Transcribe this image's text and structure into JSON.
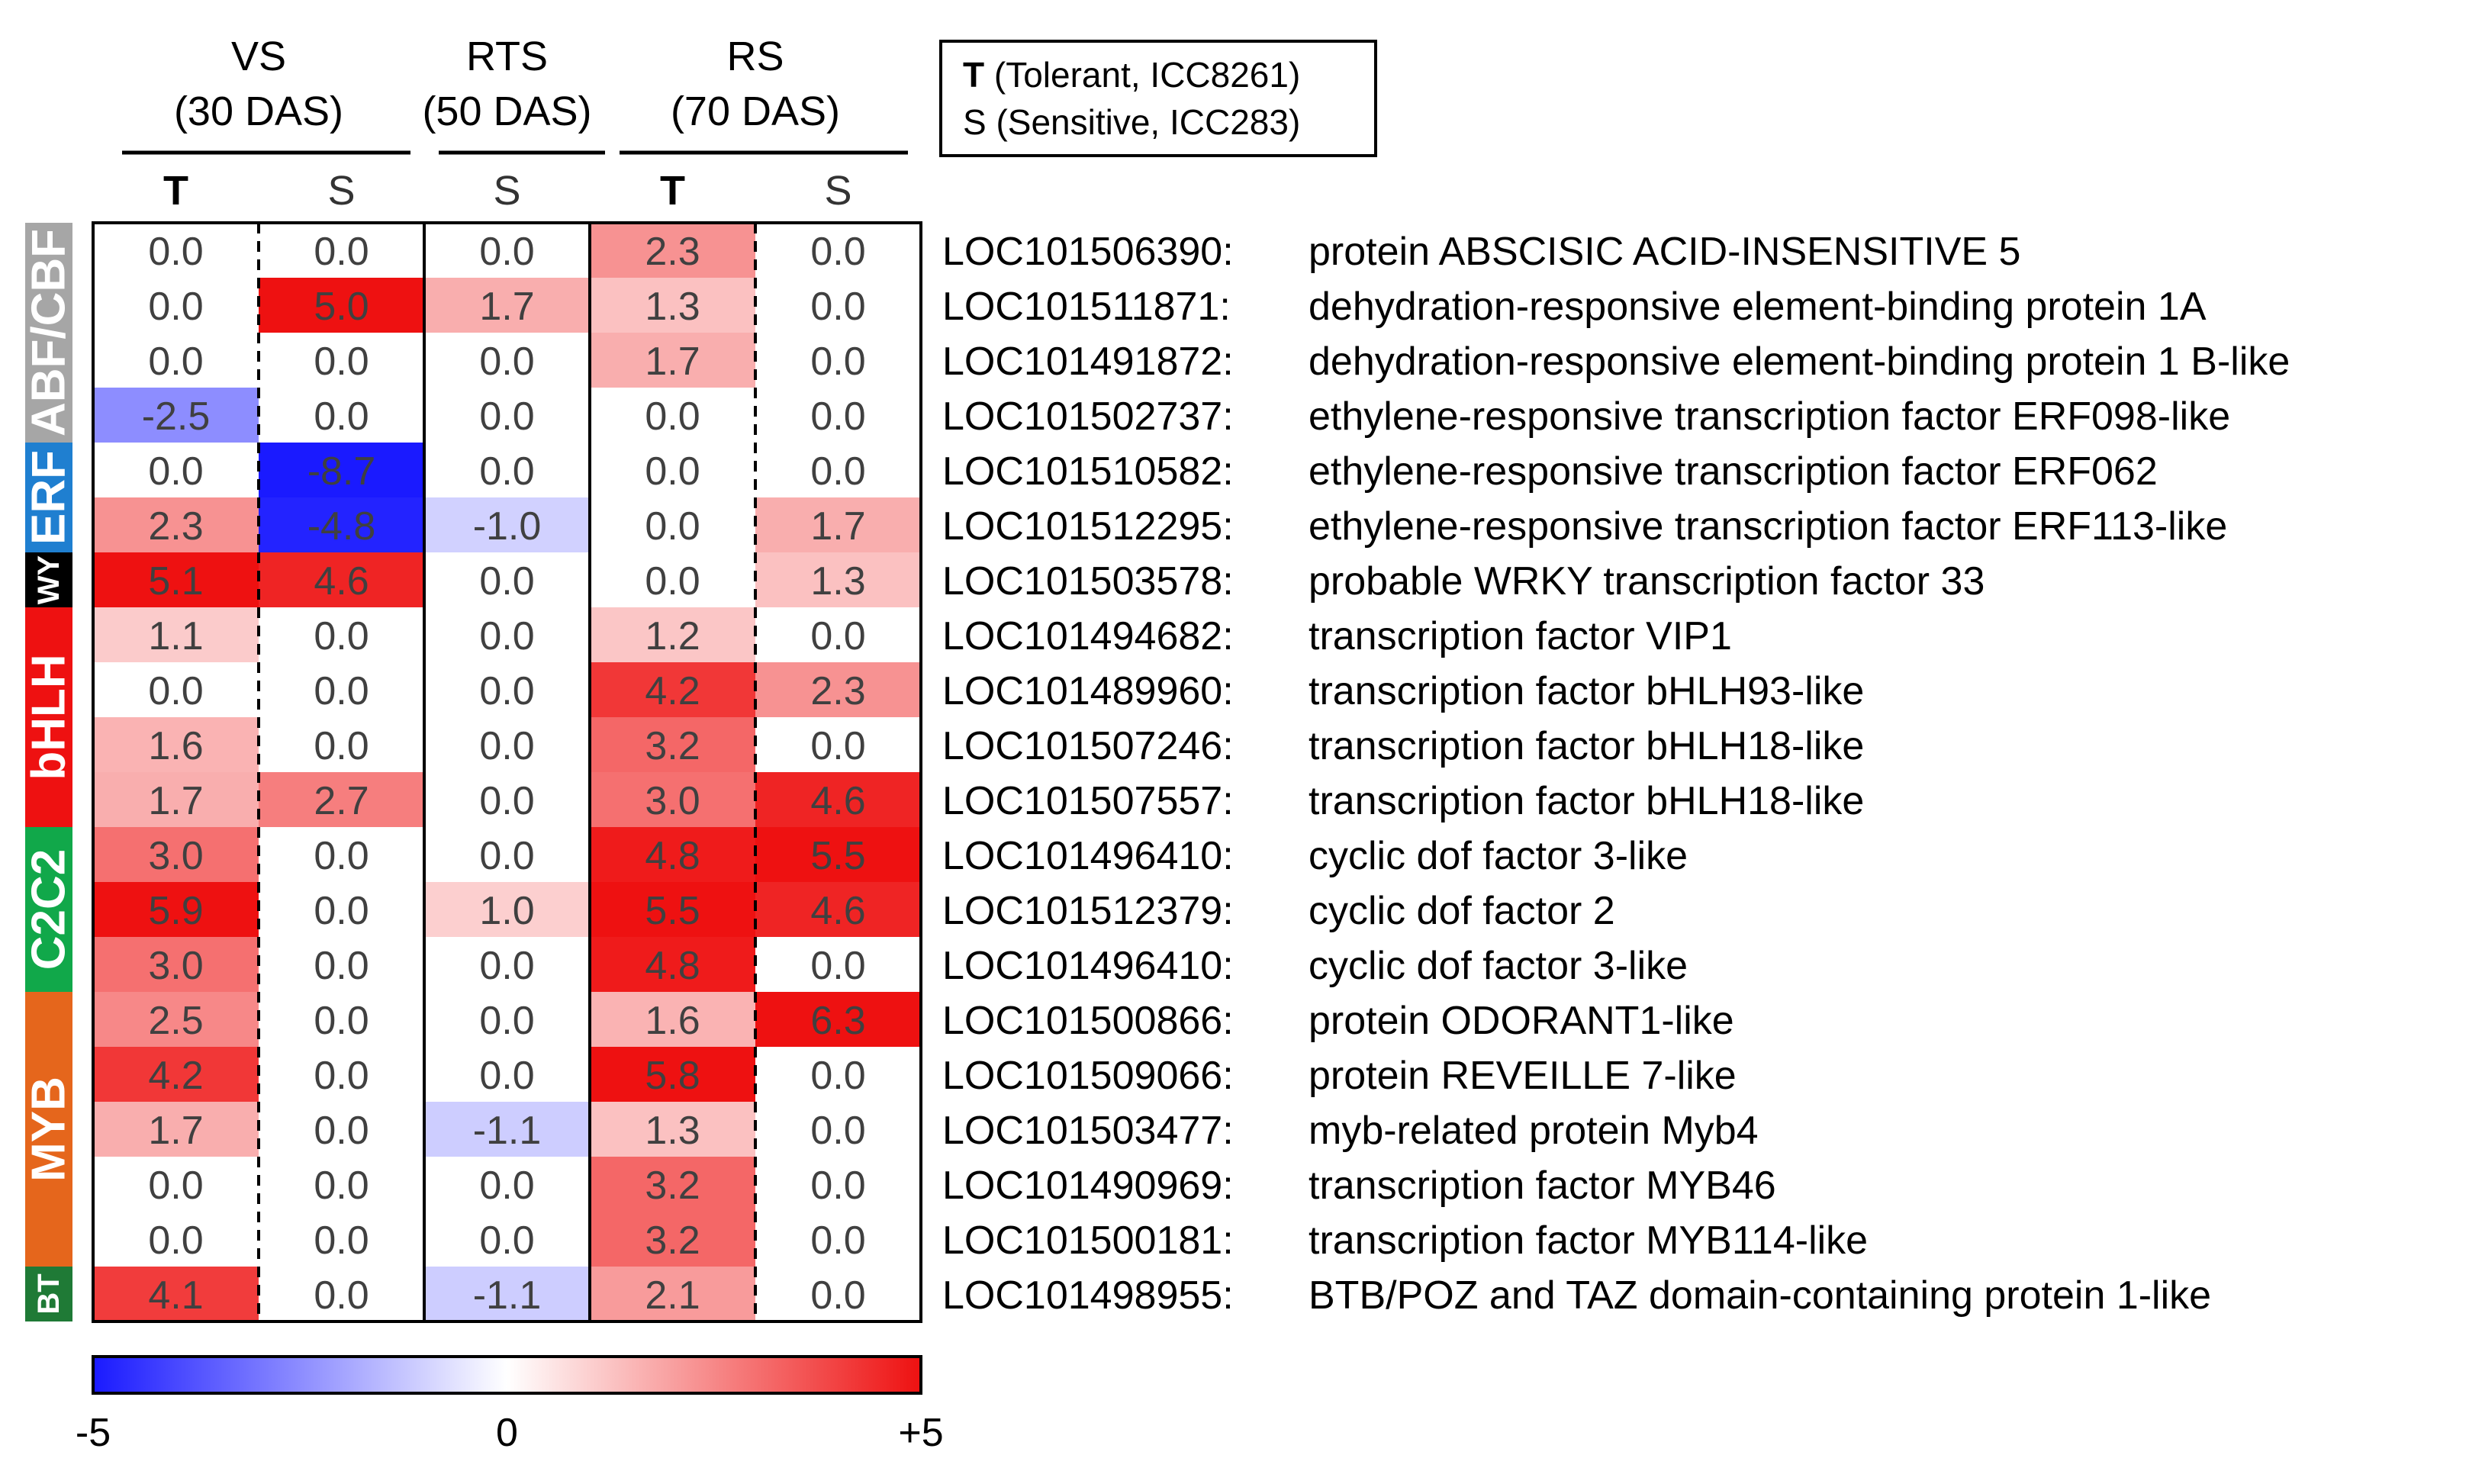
{
  "chart_data": {
    "type": "heatmap",
    "title": "",
    "color_scale": {
      "min": -5,
      "max": 5,
      "low_color": "#1a1aff",
      "mid_color": "#ffffff",
      "high_color": "#ee1111"
    },
    "colorbar_labels": [
      "-5",
      "0",
      "+5"
    ],
    "stage_groups": [
      {
        "name": "VS",
        "sub": "(30 DAS)"
      },
      {
        "name": "RTS",
        "sub": "(50 DAS)"
      },
      {
        "name": "RS",
        "sub": "(70 DAS)"
      }
    ],
    "columns": [
      {
        "label": "T",
        "bold": true
      },
      {
        "label": "S",
        "bold": false
      },
      {
        "label": "S",
        "bold": false
      },
      {
        "label": "T",
        "bold": true
      },
      {
        "label": "S",
        "bold": false
      }
    ],
    "legend": {
      "line1_key": "T",
      "line1_text": " (Tolerant, ICC8261)",
      "line2_key": "S",
      "line2_text": " (Sensitive, ICC283)"
    },
    "families": [
      {
        "name": "ABF/CBF",
        "color": "#a6a6a6"
      },
      {
        "name": "ERF",
        "color": "#1f7fd0"
      },
      {
        "name": "WY",
        "color": "#000000"
      },
      {
        "name": "bHLH",
        "color": "#ee1111"
      },
      {
        "name": "C2C2",
        "color": "#11a84a"
      },
      {
        "name": "MYB",
        "color": "#e5661c"
      },
      {
        "name": "BT",
        "color": "#1f7a36"
      }
    ],
    "rows": [
      {
        "id": "LOC101506390:",
        "desc": "protein ABSCISIC ACID-INSENSITIVE 5",
        "values": [
          0.0,
          0.0,
          0.0,
          2.3,
          0.0
        ]
      },
      {
        "id": "LOC101511871:",
        "desc": "dehydration-responsive element-binding protein 1A",
        "values": [
          0.0,
          5.0,
          1.7,
          1.3,
          0.0
        ]
      },
      {
        "id": "LOC101491872:",
        "desc": "dehydration-responsive element-binding protein 1 B-like",
        "values": [
          0.0,
          0.0,
          0.0,
          1.7,
          0.0
        ]
      },
      {
        "id": "LOC101502737:",
        "desc": "ethylene-responsive transcription factor ERF098-like",
        "values": [
          -2.5,
          0.0,
          0.0,
          0.0,
          0.0
        ]
      },
      {
        "id": "LOC101510582:",
        "desc": "ethylene-responsive transcription factor ERF062",
        "values": [
          0.0,
          -8.7,
          0.0,
          0.0,
          0.0
        ]
      },
      {
        "id": "LOC101512295:",
        "desc": "ethylene-responsive transcription factor ERF113-like",
        "values": [
          2.3,
          -4.8,
          -1.0,
          0.0,
          1.7
        ]
      },
      {
        "id": "LOC101503578:",
        "desc": "probable WRKY transcription factor 33",
        "values": [
          5.1,
          4.6,
          0.0,
          0.0,
          1.3
        ]
      },
      {
        "id": "LOC101494682:",
        "desc": "transcription factor VIP1",
        "values": [
          1.1,
          0.0,
          0.0,
          1.2,
          0.0
        ]
      },
      {
        "id": "LOC101489960:",
        "desc": "transcription factor bHLH93-like",
        "values": [
          0.0,
          0.0,
          0.0,
          4.2,
          2.3
        ]
      },
      {
        "id": "LOC101507246:",
        "desc": "transcription factor bHLH18-like",
        "values": [
          1.6,
          0.0,
          0.0,
          3.2,
          0.0
        ]
      },
      {
        "id": "LOC101507557:",
        "desc": "transcription factor bHLH18-like",
        "values": [
          1.7,
          2.7,
          0.0,
          3.0,
          4.6
        ]
      },
      {
        "id": "LOC101496410:",
        "desc": "cyclic dof factor 3-like",
        "values": [
          3.0,
          0.0,
          0.0,
          4.8,
          5.5
        ]
      },
      {
        "id": "LOC101512379:",
        "desc": "cyclic dof factor 2",
        "values": [
          5.9,
          0.0,
          1.0,
          5.5,
          4.6
        ]
      },
      {
        "id": "LOC101496410:",
        "desc": "cyclic dof factor 3-like",
        "values": [
          3.0,
          0.0,
          0.0,
          4.8,
          0.0
        ]
      },
      {
        "id": "LOC101500866:",
        "desc": "protein ODORANT1-like",
        "values": [
          2.5,
          0.0,
          0.0,
          1.6,
          6.3
        ]
      },
      {
        "id": "LOC101509066:",
        "desc": "protein REVEILLE 7-like",
        "values": [
          4.2,
          0.0,
          0.0,
          5.8,
          0.0
        ]
      },
      {
        "id": "LOC101503477:",
        "desc": "myb-related protein Myb4",
        "values": [
          1.7,
          0.0,
          -1.1,
          1.3,
          0.0
        ]
      },
      {
        "id": "LOC101490969:",
        "desc": "transcription factor MYB46",
        "values": [
          0.0,
          0.0,
          0.0,
          3.2,
          0.0
        ]
      },
      {
        "id": "LOC101500181:",
        "desc": "transcription factor MYB114-like",
        "values": [
          0.0,
          0.0,
          0.0,
          3.2,
          0.0
        ]
      },
      {
        "id": "LOC101498955:",
        "desc": "BTB/POZ and TAZ domain-containing protein 1-like",
        "values": [
          4.1,
          0.0,
          -1.1,
          2.1,
          0.0
        ]
      }
    ]
  }
}
